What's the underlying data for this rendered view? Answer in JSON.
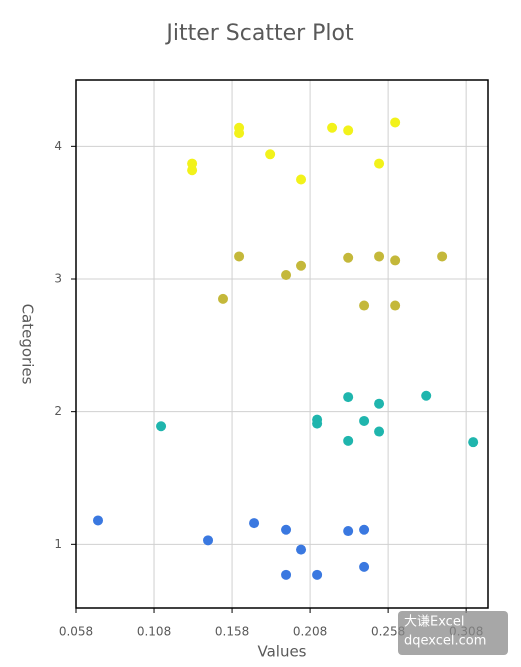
{
  "chart_data": {
    "type": "scatter",
    "title": "Jitter Scatter Plot",
    "x_label": "Values",
    "y_label": "Categories",
    "xlim": [
      0.058,
      0.322
    ],
    "xticks": [
      0.058,
      0.108,
      0.158,
      0.208,
      0.258,
      0.308
    ],
    "ylim": [
      0.52,
      4.5
    ],
    "yticks": [
      1,
      2,
      3,
      4
    ],
    "grid": true,
    "series": [
      {
        "color": "#3a78e0",
        "x": [
          0.0721,
          0.1426,
          0.1721,
          0.1926,
          0.2022,
          0.1926,
          0.2125,
          0.2324,
          0.2426,
          0.2426
        ],
        "values": [
          1.18,
          1.03,
          1.16,
          1.11,
          0.96,
          0.77,
          0.77,
          1.1,
          1.11,
          0.83
        ]
      },
      {
        "color": "#1fb5ad",
        "x": [
          0.1125,
          0.2125,
          0.2125,
          0.2324,
          0.2324,
          0.2426,
          0.2522,
          0.2522,
          0.2824,
          0.3125
        ],
        "values": [
          1.89,
          1.94,
          1.91,
          2.11,
          1.78,
          1.93,
          2.06,
          1.85,
          2.12,
          1.77
        ]
      },
      {
        "color": "#c4b83a",
        "x": [
          0.1625,
          0.1522,
          0.1926,
          0.2022,
          0.2324,
          0.2522,
          0.2625,
          0.2926,
          0.2426,
          0.2625
        ],
        "values": [
          3.17,
          2.85,
          3.03,
          3.1,
          3.16,
          3.17,
          3.14,
          3.17,
          2.8,
          2.8
        ]
      },
      {
        "color": "#f2f21a",
        "x": [
          0.1324,
          0.1324,
          0.1625,
          0.1625,
          0.1824,
          0.2022,
          0.2221,
          0.2324,
          0.2522,
          0.2625
        ],
        "values": [
          3.87,
          3.82,
          4.14,
          4.1,
          3.94,
          3.75,
          4.14,
          4.12,
          3.87,
          4.18
        ]
      }
    ],
    "watermark": [
      "大谦Excel",
      "dqexcel.com"
    ]
  }
}
